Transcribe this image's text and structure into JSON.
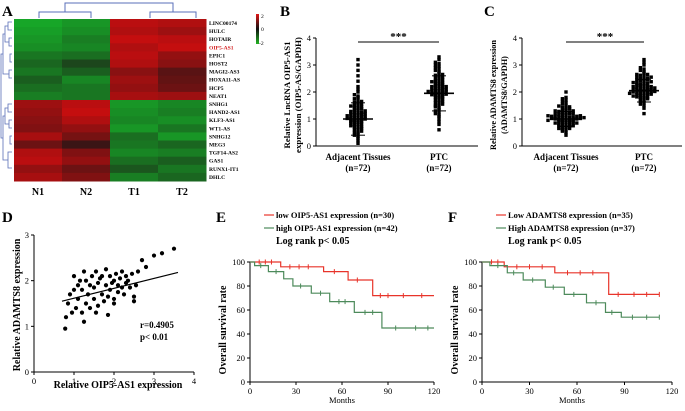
{
  "panel_labels": {
    "a": "A",
    "b": "B",
    "c": "C",
    "d": "D",
    "e": "E",
    "f": "F"
  },
  "chart_data": [
    {
      "id": "A",
      "type": "heatmap",
      "title": "",
      "columns": [
        "N1",
        "N2",
        "T1",
        "T2"
      ],
      "rows": [
        "LINC00174",
        "HULC",
        "HOTAIR",
        "OIP5-AS1",
        "EPIC1",
        "HOST2",
        "MAGI2-AS3",
        "HOXA11-AS",
        "HCP5",
        "NEAT1",
        "SNHG1",
        "HAND2-AS1",
        "KLF3-AS1",
        "WT1-AS",
        "SNHG12",
        "MEG3",
        "TGF14-AS2",
        "GAS1",
        "RUNX1-IT1",
        "DHLC"
      ],
      "highlight_row": "OIP5-AS1",
      "colorbar": {
        "ticks": [
          "2",
          "0",
          "-2"
        ],
        "colors": [
          "#e01818",
          "#111111",
          "#22b422"
        ]
      },
      "values": [
        [
          -1.8,
          -1.6,
          1.6,
          1.5
        ],
        [
          -1.7,
          -1.5,
          1.5,
          1.3
        ],
        [
          -1.6,
          -1.3,
          1.7,
          1.6
        ],
        [
          -1.5,
          -1.4,
          1.5,
          1.7
        ],
        [
          -1.2,
          -1.1,
          1.6,
          1.2
        ],
        [
          -1.0,
          -0.6,
          1.5,
          1.1
        ],
        [
          -1.2,
          -0.9,
          1.1,
          0.6
        ],
        [
          -0.9,
          -1.4,
          1.3,
          0.7
        ],
        [
          -1.1,
          -1.2,
          1.2,
          0.8
        ],
        [
          -1.3,
          -1.2,
          1.4,
          1.3
        ],
        [
          1.3,
          1.6,
          -1.6,
          -1.4
        ],
        [
          1.2,
          1.7,
          -1.5,
          -1.3
        ],
        [
          1.1,
          1.5,
          -1.4,
          -1.5
        ],
        [
          1.0,
          1.2,
          -1.6,
          -1.2
        ],
        [
          1.4,
          0.9,
          -1.1,
          -1.6
        ],
        [
          0.8,
          0.3,
          -1.2,
          -1.0
        ],
        [
          1.5,
          1.0,
          -1.4,
          -1.3
        ],
        [
          1.6,
          1.2,
          -1.1,
          -0.9
        ],
        [
          1.2,
          0.8,
          -0.8,
          -1.2
        ],
        [
          1.4,
          1.0,
          -1.3,
          -1.0
        ]
      ]
    },
    {
      "id": "B",
      "type": "scatter",
      "ylabel_line1": "Relative LncRNA OIP5-AS1",
      "ylabel_line2": "expression (OIP5-AS/GAPDH)",
      "yticks": [
        "0",
        "1",
        "2",
        "3",
        "4"
      ],
      "ylim": [
        0,
        4
      ],
      "categories": [
        "Adjacent Tissues",
        "PTC"
      ],
      "n_labels": [
        "(n=72)",
        "(n=72)"
      ],
      "means": [
        1.0,
        1.95
      ],
      "sds": [
        0.6,
        0.65
      ],
      "significance": "***",
      "group1": [
        0.1,
        0.2,
        0.3,
        0.35,
        0.4,
        0.45,
        0.5,
        0.5,
        0.55,
        0.6,
        0.6,
        0.65,
        0.7,
        0.7,
        0.72,
        0.75,
        0.8,
        0.8,
        0.82,
        0.85,
        0.88,
        0.9,
        0.9,
        0.92,
        0.95,
        0.95,
        0.98,
        1.0,
        1.0,
        1.02,
        1.05,
        1.05,
        1.08,
        1.1,
        1.1,
        1.12,
        1.15,
        1.15,
        1.18,
        1.2,
        1.2,
        1.22,
        1.25,
        1.25,
        1.28,
        1.3,
        1.32,
        1.35,
        1.38,
        1.4,
        1.42,
        1.45,
        1.48,
        1.5,
        1.52,
        1.55,
        1.6,
        1.62,
        1.65,
        1.7,
        1.75,
        1.8,
        1.85,
        1.9,
        2.0,
        2.1,
        2.2,
        2.4,
        2.6,
        2.8,
        3.0,
        3.2
      ],
      "group2": [
        0.6,
        0.8,
        0.9,
        1.0,
        1.1,
        1.15,
        1.2,
        1.25,
        1.3,
        1.35,
        1.4,
        1.45,
        1.5,
        1.5,
        1.55,
        1.6,
        1.6,
        1.65,
        1.7,
        1.7,
        1.75,
        1.8,
        1.8,
        1.82,
        1.85,
        1.88,
        1.9,
        1.9,
        1.92,
        1.95,
        1.95,
        1.98,
        2.0,
        2.0,
        2.02,
        2.05,
        2.05,
        2.08,
        2.1,
        2.1,
        2.12,
        2.15,
        2.18,
        2.2,
        2.2,
        2.22,
        2.25,
        2.28,
        2.3,
        2.32,
        2.35,
        2.38,
        2.4,
        2.42,
        2.45,
        2.5,
        2.52,
        2.55,
        2.6,
        2.62,
        2.65,
        2.7,
        2.75,
        2.8,
        2.85,
        2.9,
        2.95,
        3.0,
        3.05,
        3.1,
        3.2,
        3.3
      ]
    },
    {
      "id": "C",
      "type": "scatter",
      "ylabel_line1": "Relative ADAMTS8 expression",
      "ylabel_line2": "(ADAMTS8/GAPDH)",
      "yticks": [
        "0",
        "1",
        "2",
        "3",
        "4"
      ],
      "ylim": [
        0,
        4
      ],
      "categories": [
        "Adjacent Tissues",
        "PTC"
      ],
      "n_labels": [
        "(n=72)",
        "(n=72)"
      ],
      "means": [
        1.0,
        2.05
      ],
      "sds": [
        0.28,
        0.42
      ],
      "significance": "***",
      "group1": [
        0.4,
        0.5,
        0.55,
        0.6,
        0.6,
        0.65,
        0.65,
        0.7,
        0.7,
        0.72,
        0.75,
        0.75,
        0.78,
        0.8,
        0.8,
        0.82,
        0.85,
        0.85,
        0.88,
        0.9,
        0.9,
        0.9,
        0.92,
        0.95,
        0.95,
        0.95,
        0.98,
        1.0,
        1.0,
        1.0,
        1.02,
        1.02,
        1.05,
        1.05,
        1.05,
        1.08,
        1.08,
        1.1,
        1.1,
        1.1,
        1.12,
        1.12,
        1.15,
        1.15,
        1.18,
        1.18,
        1.2,
        1.2,
        1.22,
        1.25,
        1.25,
        1.28,
        1.3,
        1.3,
        1.32,
        1.35,
        1.38,
        1.4,
        1.42,
        1.45,
        1.48,
        1.5,
        1.55,
        1.6,
        1.65,
        1.7,
        1.75,
        1.8,
        0.85,
        0.95,
        1.05,
        2.0
      ],
      "group2": [
        1.2,
        1.4,
        1.5,
        1.55,
        1.6,
        1.65,
        1.7,
        1.72,
        1.75,
        1.78,
        1.8,
        1.8,
        1.82,
        1.85,
        1.88,
        1.9,
        1.9,
        1.92,
        1.95,
        1.95,
        1.98,
        2.0,
        2.0,
        2.0,
        2.02,
        2.05,
        2.05,
        2.08,
        2.1,
        2.1,
        2.1,
        2.12,
        2.15,
        2.15,
        2.18,
        2.2,
        2.2,
        2.22,
        2.25,
        2.25,
        2.28,
        2.3,
        2.3,
        2.32,
        2.35,
        2.38,
        2.4,
        2.42,
        2.45,
        2.48,
        2.5,
        2.52,
        2.55,
        2.6,
        2.62,
        2.65,
        2.7,
        2.75,
        2.8,
        2.85,
        2.9,
        3.0,
        3.1,
        3.2,
        1.95,
        2.05,
        2.15,
        2.35,
        2.45,
        1.85,
        2.55,
        2.65
      ]
    },
    {
      "id": "D",
      "type": "scatter",
      "xlabel": "Relative OIP5-AS1 expression",
      "ylabel": "Relative ADAMTS8 expression",
      "xticks": [
        "0",
        "1",
        "2",
        "3",
        "4"
      ],
      "xlim": [
        0,
        4
      ],
      "yticks": [
        "0",
        "1",
        "2",
        "3"
      ],
      "ylim": [
        0,
        3
      ],
      "annotation_r": "r=0.4905",
      "annotation_p": "p< 0.01",
      "fit_line": {
        "x0": 0.7,
        "y0": 1.55,
        "x1": 3.6,
        "y1": 2.18
      },
      "x": [
        0.78,
        0.8,
        0.85,
        0.9,
        0.95,
        1.0,
        1.0,
        1.05,
        1.1,
        1.1,
        1.15,
        1.2,
        1.2,
        1.25,
        1.3,
        1.3,
        1.35,
        1.4,
        1.4,
        1.45,
        1.5,
        1.5,
        1.55,
        1.6,
        1.6,
        1.65,
        1.7,
        1.7,
        1.75,
        1.8,
        1.8,
        1.85,
        1.9,
        1.9,
        1.95,
        2.0,
        2.0,
        2.05,
        2.1,
        2.1,
        2.15,
        2.2,
        2.2,
        2.25,
        2.3,
        2.3,
        2.35,
        2.4,
        2.45,
        2.5,
        2.55,
        2.6,
        2.7,
        2.8,
        3.0,
        3.2,
        3.5,
        1.25,
        1.55,
        1.85,
        2.0,
        2.5
      ],
      "y": [
        0.95,
        1.2,
        1.5,
        1.7,
        1.3,
        1.8,
        2.1,
        1.4,
        1.6,
        1.9,
        2.0,
        1.3,
        1.8,
        2.2,
        1.5,
        2.0,
        1.7,
        1.4,
        1.9,
        2.1,
        1.6,
        1.85,
        2.2,
        1.45,
        1.95,
        2.05,
        1.7,
        2.1,
        1.55,
        1.9,
        2.25,
        1.65,
        1.8,
        2.1,
        1.95,
        1.6,
        2.0,
        2.15,
        1.75,
        1.9,
        2.05,
        1.85,
        2.2,
        1.7,
        1.95,
        2.1,
        2.0,
        1.85,
        2.15,
        1.65,
        1.9,
        2.2,
        2.45,
        2.3,
        2.55,
        2.6,
        2.7,
        1.1,
        1.3,
        1.25,
        1.5,
        1.55
      ]
    },
    {
      "id": "E",
      "type": "line",
      "legend": [
        "low OIP5-AS1 expression (n=30)",
        "high OIP5-AS1 expression (n=42)"
      ],
      "logrank": "Log rank p< 0.05",
      "xlabel": "Months",
      "ylabel": "Overall survival rate",
      "xticks": [
        "0",
        "30",
        "60",
        "90",
        "120"
      ],
      "xlim": [
        0,
        120
      ],
      "yticks": [
        "0",
        "20",
        "40",
        "60",
        "80",
        "100"
      ],
      "ylim": [
        0,
        100
      ],
      "series": [
        {
          "name": "low",
          "color": "#e8342a",
          "steps": [
            [
              0,
              100
            ],
            [
              20,
              100
            ],
            [
              20,
              96
            ],
            [
              48,
              96
            ],
            [
              48,
              92
            ],
            [
              64,
              92
            ],
            [
              64,
              85
            ],
            [
              80,
              85
            ],
            [
              80,
              72
            ],
            [
              120,
              72
            ]
          ],
          "censor": [
            [
              6,
              100
            ],
            [
              10,
              100
            ],
            [
              14,
              100
            ],
            [
              26,
              96
            ],
            [
              32,
              96
            ],
            [
              38,
              96
            ],
            [
              55,
              92
            ],
            [
              70,
              85
            ],
            [
              85,
              72
            ],
            [
              90,
              72
            ],
            [
              100,
              72
            ],
            [
              112,
              72
            ]
          ]
        },
        {
          "name": "high",
          "color": "#4d8a5b",
          "steps": [
            [
              0,
              100
            ],
            [
              3,
              100
            ],
            [
              3,
              97
            ],
            [
              12,
              97
            ],
            [
              12,
              92
            ],
            [
              22,
              92
            ],
            [
              22,
              86
            ],
            [
              28,
              86
            ],
            [
              28,
              80
            ],
            [
              40,
              80
            ],
            [
              40,
              74
            ],
            [
              52,
              74
            ],
            [
              52,
              67
            ],
            [
              68,
              67
            ],
            [
              68,
              58
            ],
            [
              86,
              58
            ],
            [
              86,
              45
            ],
            [
              120,
              45
            ]
          ],
          "censor": [
            [
              7,
              97
            ],
            [
              17,
              92
            ],
            [
              33,
              80
            ],
            [
              46,
              74
            ],
            [
              58,
              67
            ],
            [
              62,
              67
            ],
            [
              75,
              58
            ],
            [
              80,
              58
            ],
            [
              95,
              45
            ],
            [
              108,
              45
            ],
            [
              116,
              45
            ]
          ]
        }
      ]
    },
    {
      "id": "F",
      "type": "line",
      "legend": [
        "Low ADAMTS8 expression (n=35)",
        "High ADAMTS8 expression (n=37)"
      ],
      "logrank": "Log rank p< 0.05",
      "xlabel": "Months",
      "ylabel": "Overall survival rate",
      "xticks": [
        "0",
        "30",
        "60",
        "90",
        "120"
      ],
      "xlim": [
        0,
        120
      ],
      "yticks": [
        "0",
        "20",
        "40",
        "60",
        "80",
        "100"
      ],
      "ylim": [
        0,
        100
      ],
      "series": [
        {
          "name": "low",
          "color": "#e8342a",
          "steps": [
            [
              0,
              100
            ],
            [
              14,
              100
            ],
            [
              14,
              96
            ],
            [
              46,
              96
            ],
            [
              46,
              91
            ],
            [
              80,
              91
            ],
            [
              80,
              73
            ],
            [
              112,
              73
            ]
          ],
          "censor": [
            [
              6,
              100
            ],
            [
              10,
              100
            ],
            [
              22,
              96
            ],
            [
              30,
              96
            ],
            [
              38,
              96
            ],
            [
              54,
              91
            ],
            [
              62,
              91
            ],
            [
              70,
              91
            ],
            [
              86,
              73
            ],
            [
              96,
              73
            ],
            [
              104,
              73
            ],
            [
              112,
              73
            ]
          ]
        },
        {
          "name": "high",
          "color": "#4d8a5b",
          "steps": [
            [
              0,
              100
            ],
            [
              5,
              100
            ],
            [
              5,
              97
            ],
            [
              16,
              97
            ],
            [
              16,
              91
            ],
            [
              26,
              91
            ],
            [
              26,
              85
            ],
            [
              40,
              85
            ],
            [
              40,
              79
            ],
            [
              52,
              79
            ],
            [
              52,
              73
            ],
            [
              66,
              73
            ],
            [
              66,
              66
            ],
            [
              78,
              66
            ],
            [
              78,
              58
            ],
            [
              88,
              58
            ],
            [
              88,
              54
            ],
            [
              112,
              54
            ]
          ],
          "censor": [
            [
              10,
              97
            ],
            [
              20,
              91
            ],
            [
              32,
              85
            ],
            [
              45,
              79
            ],
            [
              58,
              73
            ],
            [
              72,
              66
            ],
            [
              82,
              58
            ],
            [
              95,
              54
            ],
            [
              104,
              54
            ],
            [
              112,
              54
            ]
          ]
        }
      ]
    }
  ]
}
